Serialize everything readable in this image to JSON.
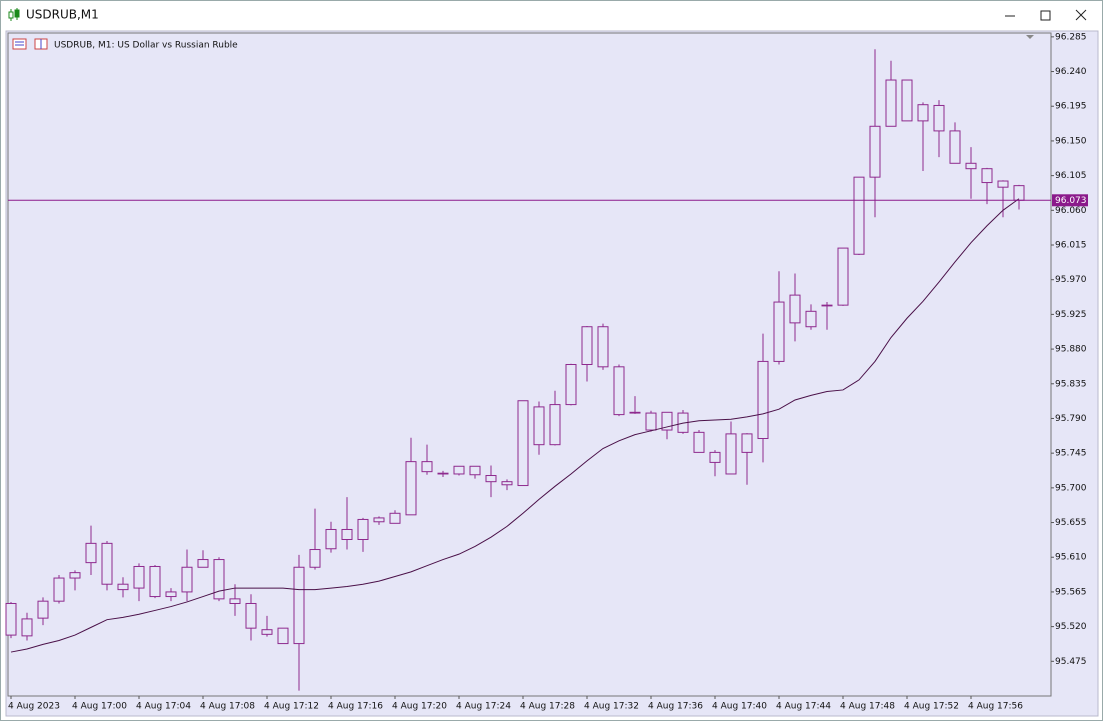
{
  "window": {
    "title": "USDRUB,M1"
  },
  "chart_data": {
    "type": "candlestick",
    "title": "USDRUB, M1:  US Dollar vs Russian Ruble",
    "categories": [
      "4 Aug 2023",
      null,
      null,
      null,
      "4 Aug 17:00",
      null,
      null,
      null,
      "4 Aug 17:04",
      null,
      null,
      null,
      "4 Aug 17:08",
      null,
      null,
      null,
      "4 Aug 17:12",
      null,
      null,
      null,
      "4 Aug 17:16",
      null,
      null,
      null,
      "4 Aug 17:20",
      null,
      null,
      null,
      "4 Aug 17:24",
      null,
      null,
      null,
      "4 Aug 17:28",
      null,
      null,
      null,
      "4 Aug 17:32",
      null,
      null,
      null,
      "4 Aug 17:36",
      null,
      null,
      null,
      "4 Aug 17:40",
      null,
      null,
      null,
      "4 Aug 17:44",
      null,
      null,
      null,
      "4 Aug 17:48",
      null,
      null,
      null,
      "4 Aug 17:52",
      null,
      null,
      null,
      "4 Aug 17:56",
      null,
      null,
      null
    ],
    "open": [
      95.55,
      95.508,
      95.531,
      95.553,
      95.583,
      95.603,
      95.628,
      95.575,
      95.57,
      95.598,
      95.559,
      95.565,
      95.597,
      95.607,
      95.556,
      95.55,
      95.516,
      95.518,
      95.498,
      95.597,
      95.621,
      95.646,
      95.633,
      95.656,
      95.654,
      95.665,
      95.734,
      95.719,
      95.718,
      95.728,
      95.716,
      95.708,
      95.703,
      95.805,
      95.756,
      95.808,
      95.86,
      95.909,
      95.857,
      95.798,
      95.797,
      95.775,
      95.797,
      95.772,
      95.746,
      95.718,
      95.77,
      95.764,
      95.864,
      95.914,
      95.929,
      95.936,
      95.937,
      96.003,
      96.103,
      96.169,
      96.229,
      96.176,
      96.196,
      96.163,
      96.121,
      96.114,
      96.098,
      96.092
    ],
    "high": [
      95.552,
      95.538,
      95.558,
      95.587,
      95.593,
      95.651,
      95.631,
      95.584,
      95.602,
      95.6,
      95.57,
      95.62,
      95.619,
      95.61,
      95.575,
      95.562,
      95.534,
      95.518,
      95.613,
      95.673,
      95.656,
      95.688,
      95.661,
      95.663,
      95.671,
      95.765,
      95.756,
      95.722,
      95.728,
      95.728,
      95.729,
      95.711,
      95.813,
      95.812,
      95.826,
      95.861,
      95.91,
      95.913,
      95.86,
      95.819,
      95.8,
      95.798,
      95.801,
      95.775,
      95.749,
      95.786,
      95.771,
      95.9,
      95.981,
      95.978,
      95.938,
      95.941,
      96.011,
      96.103,
      96.269,
      96.254,
      96.229,
      96.2,
      96.203,
      96.174,
      96.142,
      96.115,
      96.099,
      96.093
    ],
    "low": [
      95.505,
      95.502,
      95.522,
      95.55,
      95.567,
      95.587,
      95.567,
      95.558,
      95.553,
      95.557,
      95.553,
      95.553,
      95.597,
      95.553,
      95.534,
      95.502,
      95.507,
      95.498,
      95.437,
      95.594,
      95.616,
      95.62,
      95.617,
      95.652,
      95.654,
      95.665,
      95.717,
      95.714,
      95.716,
      95.712,
      95.688,
      95.697,
      95.703,
      95.743,
      95.755,
      95.807,
      95.838,
      95.853,
      95.793,
      95.796,
      95.773,
      95.763,
      95.77,
      95.746,
      95.715,
      95.718,
      95.704,
      95.733,
      95.86,
      95.89,
      95.905,
      95.905,
      95.936,
      96.002,
      96.051,
      96.169,
      96.176,
      96.111,
      96.129,
      96.121,
      96.075,
      96.068,
      96.051,
      96.061
    ],
    "close": [
      95.509,
      95.53,
      95.553,
      95.583,
      95.59,
      95.628,
      95.575,
      95.568,
      95.598,
      95.559,
      95.565,
      95.597,
      95.607,
      95.556,
      95.55,
      95.518,
      95.51,
      95.498,
      95.597,
      95.62,
      95.646,
      95.633,
      95.659,
      95.661,
      95.667,
      95.734,
      95.721,
      95.718,
      95.728,
      95.717,
      95.708,
      95.704,
      95.813,
      95.756,
      95.808,
      95.86,
      95.909,
      95.857,
      95.795,
      95.797,
      95.775,
      95.798,
      95.772,
      95.746,
      95.733,
      95.77,
      95.746,
      95.864,
      95.941,
      95.95,
      95.909,
      95.937,
      96.011,
      96.103,
      96.169,
      96.229,
      96.176,
      96.197,
      96.163,
      96.121,
      96.114,
      96.096,
      96.09,
      96.073
    ],
    "color": "#8e2a8e",
    "ma": {
      "color": "#4a1048",
      "values": [
        95.487,
        95.491,
        95.497,
        95.502,
        95.509,
        95.519,
        95.529,
        95.532,
        95.536,
        95.541,
        95.546,
        95.552,
        95.559,
        95.566,
        95.57,
        95.57,
        95.57,
        95.57,
        95.568,
        95.568,
        95.57,
        95.572,
        95.575,
        95.579,
        95.585,
        95.591,
        95.599,
        95.607,
        95.614,
        95.624,
        95.636,
        95.65,
        95.667,
        95.685,
        95.702,
        95.718,
        95.735,
        95.751,
        95.761,
        95.769,
        95.774,
        95.779,
        95.784,
        95.787,
        95.788,
        95.789,
        95.792,
        95.796,
        95.802,
        95.814,
        95.82,
        95.825,
        95.827,
        95.84,
        95.864,
        95.895,
        95.92,
        95.942,
        95.967,
        95.993,
        96.018,
        96.04,
        96.06,
        96.075
      ]
    },
    "last_price": 96.073,
    "last_price_color": "#8b1a8b",
    "ylim": [
      95.43,
      96.29
    ],
    "yticks": [
      95.475,
      {
        "value": 95.52,
        "label": "95.520"
      },
      95.565,
      {
        "value": 95.61,
        "label": "95.610"
      },
      95.655,
      {
        "value": 95.7,
        "label": "95.700"
      },
      95.745,
      {
        "value": 95.79,
        "label": "95.790"
      },
      95.835,
      {
        "value": 95.88,
        "label": "95.880"
      },
      95.925,
      {
        "value": 95.97,
        "label": "95.970"
      },
      96.015,
      {
        "value": 96.06,
        "label": "96.060"
      },
      96.105,
      {
        "value": 96.15,
        "label": "96.150"
      },
      96.195,
      {
        "value": 96.24,
        "label": "96.240"
      },
      96.285
    ],
    "grid": false
  }
}
